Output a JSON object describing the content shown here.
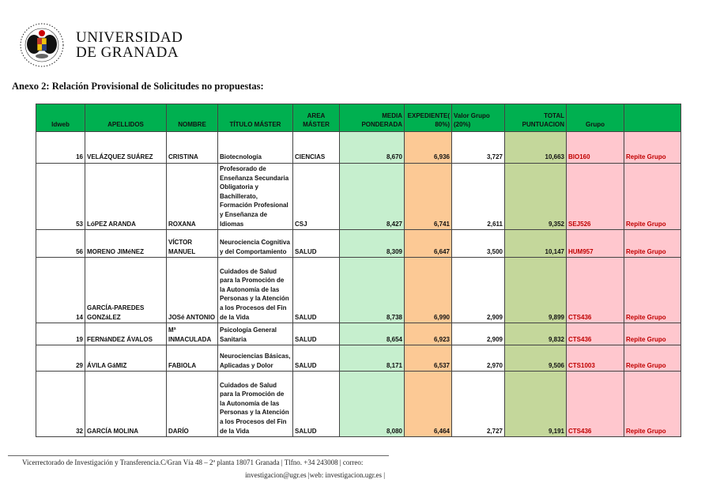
{
  "header": {
    "university_line1": "UNIVERSIDAD",
    "university_line2": "DE GRANADA",
    "logo_icon": "university-seal-icon"
  },
  "title": "Anexo 2: Relación Provisional de Solicitudes no propuestas:",
  "colors": {
    "header_green": "#00b050",
    "media_fill": "#c6efce",
    "expediente_fill": "#fcc995",
    "total_fill": "#c4d79b",
    "grupo_fill": "#ffc7ce",
    "grupo_text": "#c00000"
  },
  "table": {
    "columns": [
      "Idweb",
      "APELLIDOS",
      "NOMBRE",
      "TÍTULO MÁSTER",
      "AREA MÁSTER",
      "MEDIA PONDERADA",
      "EXPEDIENTE( 80%)",
      "Valor Grupo (20%)",
      "TOTAL PUNTUACION",
      "Grupo",
      ""
    ],
    "rows": [
      {
        "idweb": "16",
        "apellidos": "VELÁZQUEZ SUÁREZ",
        "nombre": "CRISTINA",
        "titulo": "Biotecnología",
        "area": "CIENCIAS",
        "media": "8,670",
        "expediente": "6,936",
        "valor": "3,727",
        "total": "10,663",
        "grupo": "BIO160",
        "estado": "Repite Grupo"
      },
      {
        "idweb": "53",
        "apellidos": "LóPEZ ARANDA",
        "nombre": "ROXANA",
        "titulo": "Profesorado de Enseñanza Secundaria Obligatoria y Bachillerato, Formación Profesional y Enseñanza de Idiomas",
        "area": "CSJ",
        "media": "8,427",
        "expediente": "6,741",
        "valor": "2,611",
        "total": "9,352",
        "grupo": "SEJ526",
        "estado": "Repite Grupo"
      },
      {
        "idweb": "56",
        "apellidos": "MORENO JIMéNEZ",
        "nombre": "VÍCTOR MANUEL",
        "titulo": "Neurociencia Cognitiva y del Comportamiento",
        "area": "SALUD",
        "media": "8,309",
        "expediente": "6,647",
        "valor": "3,500",
        "total": "10,147",
        "grupo": "HUM957",
        "estado": "Repite Grupo"
      },
      {
        "idweb": "14",
        "apellidos": "GARCÍA-PAREDES GONZáLEZ",
        "nombre": "JOSé ANTONIO",
        "titulo": "Cuidados de Salud para la Promoción de la Autonomía de las Personas y la Atención a los Procesos del Fin de la Vida",
        "area": "SALUD",
        "media": "8,738",
        "expediente": "6,990",
        "valor": "2,909",
        "total": "9,899",
        "grupo": "CTS436",
        "estado": "Repite Grupo"
      },
      {
        "idweb": "19",
        "apellidos": "FERNáNDEZ ÁVALOS",
        "nombre": "Mª INMACULADA",
        "titulo": "Psicología General Sanitaria",
        "area": "SALUD",
        "media": "8,654",
        "expediente": "6,923",
        "valor": "2,909",
        "total": "9,832",
        "grupo": "CTS436",
        "estado": "Repite Grupo"
      },
      {
        "idweb": "29",
        "apellidos": "ÁVILA GáMIZ",
        "nombre": "FABIOLA",
        "titulo": "Neurociencias Básicas, Aplicadas y Dolor",
        "area": "SALUD",
        "media": "8,171",
        "expediente": "6,537",
        "valor": "2,970",
        "total": "9,506",
        "grupo": "CTS1003",
        "estado": "Repite Grupo"
      },
      {
        "idweb": "32",
        "apellidos": "GARCÍA MOLINA",
        "nombre": "DARÍO",
        "titulo": "Cuidados de Salud para la Promoción de la Autonomía de las Personas y la Atención a los Procesos del Fin de la Vida",
        "area": "SALUD",
        "media": "8,080",
        "expediente": "6,464",
        "valor": "2,727",
        "total": "9,191",
        "grupo": "CTS436",
        "estado": "Repite Grupo"
      }
    ]
  },
  "footer": {
    "line1": "Vicerrectorado de Investigación y Transferencia.C/Gran Vía 48 – 2ª planta 18071 Granada | Tlfno. +34 243008 | correo:",
    "line2": "investigacion@ugr.es |web: investigacion.ugr.es |"
  }
}
